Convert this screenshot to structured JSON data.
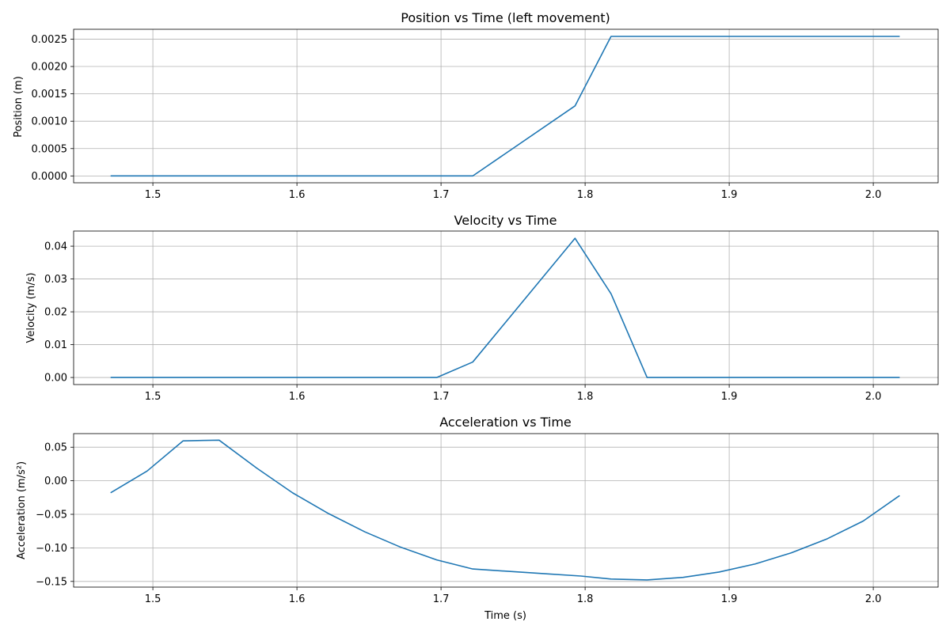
{
  "chart_data": [
    {
      "type": "line",
      "title": "Position vs Time (left movement)",
      "xlabel": "",
      "ylabel": "Position (m)",
      "xlim": [
        1.445,
        2.045
      ],
      "ylim": [
        -0.000125,
        0.00268
      ],
      "xticks": [
        1.5,
        1.6,
        1.7,
        1.8,
        1.9,
        2.0
      ],
      "xtick_labels": [
        "1.5",
        "1.6",
        "1.7",
        "1.8",
        "1.9",
        "2.0"
      ],
      "yticks": [
        0,
        0.0005,
        0.001,
        0.0015,
        0.002,
        0.0025
      ],
      "ytick_labels": [
        "0.0000",
        "0.0005",
        "0.0010",
        "0.0015",
        "0.0020",
        "0.0025"
      ],
      "grid": true,
      "color": "#1f77b4",
      "series": [
        {
          "name": "position",
          "x": [
            1.471,
            1.722,
            1.793,
            1.818,
            2.018
          ],
          "y": [
            0.0,
            0.0,
            0.00128,
            0.00255,
            0.00255
          ]
        }
      ]
    },
    {
      "type": "line",
      "title": "Velocity vs Time",
      "xlabel": "",
      "ylabel": "Velocity (m/s)",
      "xlim": [
        1.445,
        2.045
      ],
      "ylim": [
        -0.00215,
        0.0446
      ],
      "xticks": [
        1.5,
        1.6,
        1.7,
        1.8,
        1.9,
        2.0
      ],
      "xtick_labels": [
        "1.5",
        "1.6",
        "1.7",
        "1.8",
        "1.9",
        "2.0"
      ],
      "yticks": [
        0,
        0.01,
        0.02,
        0.03,
        0.04
      ],
      "ytick_labels": [
        "0.00",
        "0.01",
        "0.02",
        "0.03",
        "0.04"
      ],
      "grid": true,
      "color": "#1f77b4",
      "series": [
        {
          "name": "velocity",
          "x": [
            1.471,
            1.697,
            1.722,
            1.793,
            1.818,
            1.843,
            2.018
          ],
          "y": [
            0.0,
            0.0,
            0.0047,
            0.0424,
            0.0255,
            0.0,
            0.0
          ]
        }
      ]
    },
    {
      "type": "line",
      "title": "Acceleration vs Time",
      "xlabel": "Time (s)",
      "ylabel": "Acceleration (m/s²)",
      "xlim": [
        1.445,
        2.045
      ],
      "ylim": [
        -0.1585,
        0.0703
      ],
      "xticks": [
        1.5,
        1.6,
        1.7,
        1.8,
        1.9,
        2.0
      ],
      "xtick_labels": [
        "1.5",
        "1.6",
        "1.7",
        "1.8",
        "1.9",
        "2.0"
      ],
      "yticks": [
        0.05,
        0.0,
        -0.05,
        -0.1,
        -0.15
      ],
      "ytick_labels": [
        "0.05",
        "0.00",
        "−0.05",
        "−0.10",
        "−0.15"
      ],
      "grid": true,
      "color": "#1f77b4",
      "series": [
        {
          "name": "acceleration",
          "x": [
            1.471,
            1.496,
            1.521,
            1.546,
            1.572,
            1.597,
            1.622,
            1.647,
            1.672,
            1.697,
            1.722,
            1.747,
            1.772,
            1.797,
            1.818,
            1.843,
            1.868,
            1.893,
            1.918,
            1.943,
            1.968,
            1.993,
            2.018
          ],
          "y": [
            -0.0175,
            0.0145,
            0.0595,
            0.0605,
            0.019,
            -0.018,
            -0.049,
            -0.076,
            -0.099,
            -0.118,
            -0.1315,
            -0.135,
            -0.1385,
            -0.142,
            -0.1465,
            -0.1478,
            -0.144,
            -0.136,
            -0.124,
            -0.1075,
            -0.0865,
            -0.06,
            -0.0225
          ]
        }
      ]
    }
  ]
}
